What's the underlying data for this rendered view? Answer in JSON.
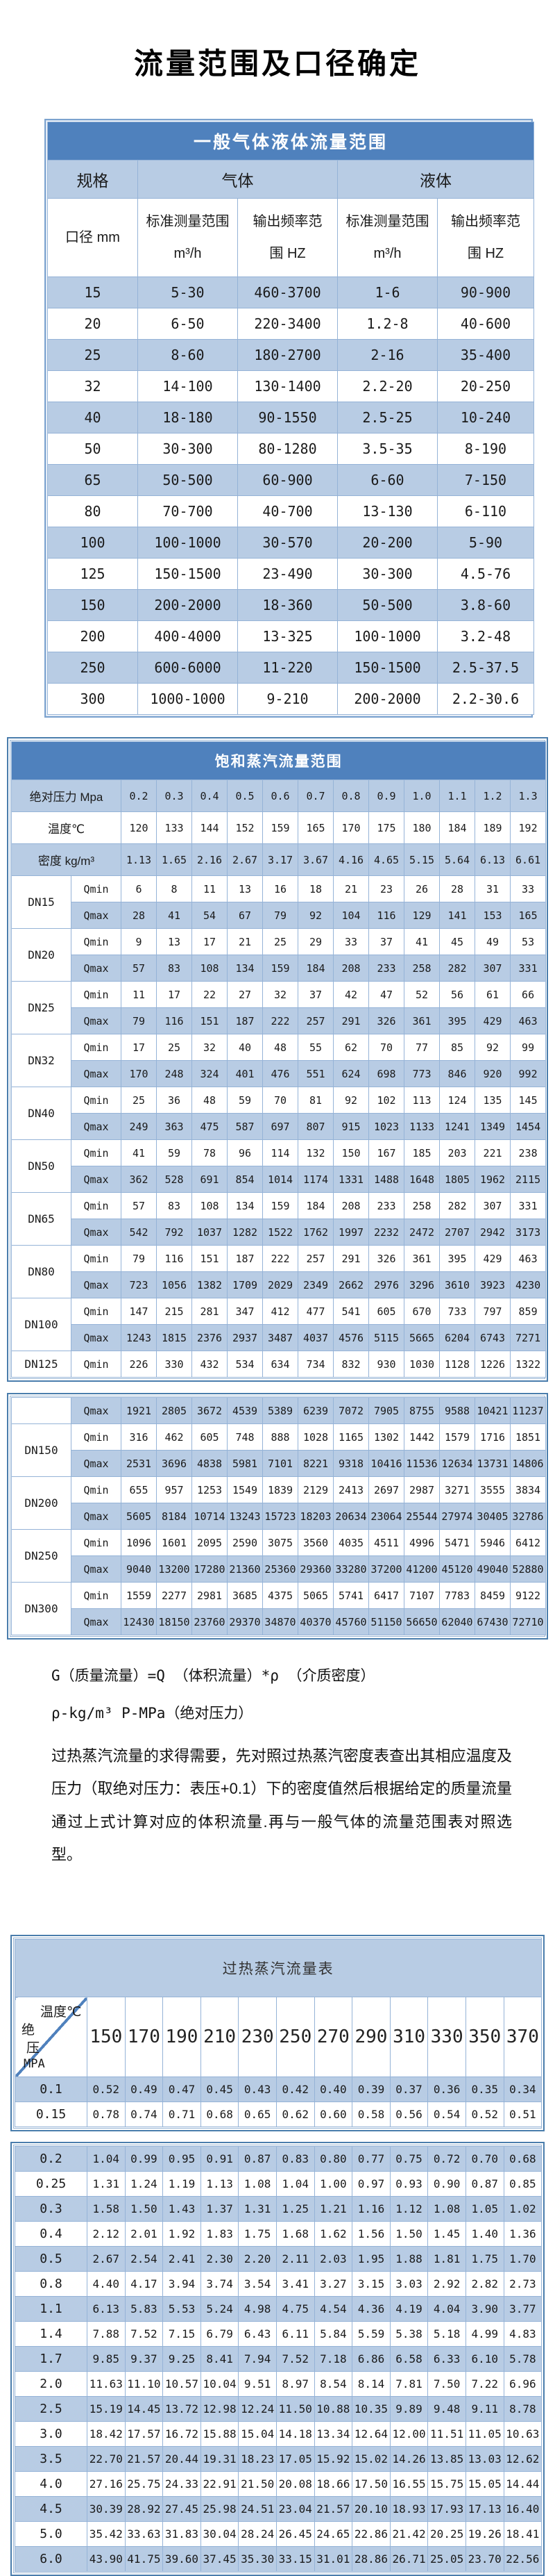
{
  "page_title": "流量范围及口径确定",
  "colors": {
    "header_blue": "#4f81bd",
    "light_blue": "#b8cce4",
    "cell_border": "#95b3d7",
    "outer_border": "#4a7dac"
  },
  "table1": {
    "title": "一般气体液体流量范围",
    "group_headers": [
      {
        "label": "规格",
        "colspan": 1
      },
      {
        "label": "气体",
        "colspan": 2
      },
      {
        "label": "液体",
        "colspan": 2
      }
    ],
    "sub_headers": [
      "口径 mm",
      "标准测量范围\nm³/h",
      "输出频率范\n围 HZ",
      "标准测量范围\nm³/h",
      "输出频率范\n围 HZ"
    ],
    "rows": [
      [
        "15",
        "5-30",
        "460-3700",
        "1-6",
        "90-900"
      ],
      [
        "20",
        "6-50",
        "220-3400",
        "1.2-8",
        "40-600"
      ],
      [
        "25",
        "8-60",
        "180-2700",
        "2-16",
        "35-400"
      ],
      [
        "32",
        "14-100",
        "130-1400",
        "2.2-20",
        "20-250"
      ],
      [
        "40",
        "18-180",
        "90-1550",
        "2.5-25",
        "10-240"
      ],
      [
        "50",
        "30-300",
        "80-1280",
        "3.5-35",
        "8-190"
      ],
      [
        "65",
        "50-500",
        "60-900",
        "6-60",
        "7-150"
      ],
      [
        "80",
        "70-700",
        "40-700",
        "13-130",
        "6-110"
      ],
      [
        "100",
        "100-1000",
        "30-570",
        "20-200",
        "5-90"
      ],
      [
        "125",
        "150-1500",
        "23-490",
        "30-300",
        "4.5-76"
      ],
      [
        "150",
        "200-2000",
        "18-360",
        "50-500",
        "3.8-60"
      ],
      [
        "200",
        "400-4000",
        "13-325",
        "100-1000",
        "3.2-48"
      ],
      [
        "250",
        "600-6000",
        "11-220",
        "150-1500",
        "2.5-37.5"
      ],
      [
        "300",
        "1000-1000",
        "9-210",
        "200-2000",
        "2.2-30.6"
      ]
    ]
  },
  "table2": {
    "title": "饱和蒸汽流量范围",
    "pressure_label": "绝对压力 Mpa",
    "pressures": [
      "0.2",
      "0.3",
      "0.4",
      "0.5",
      "0.6",
      "0.7",
      "0.8",
      "0.9",
      "1.0",
      "1.1",
      "1.2",
      "1.3"
    ],
    "temp_label": "温度℃",
    "temps": [
      "120",
      "133",
      "144",
      "152",
      "159",
      "165",
      "170",
      "175",
      "180",
      "184",
      "189",
      "192"
    ],
    "density_label": "密度 kg/m³",
    "densities": [
      "1.13",
      "1.65",
      "2.16",
      "2.67",
      "3.17",
      "3.67",
      "4.16",
      "4.65",
      "5.15",
      "5.64",
      "6.13",
      "6.61"
    ],
    "qmin_label": "Qmin",
    "qmax_label": "Qmax",
    "groups1": [
      {
        "dn": "DN15",
        "qmin": [
          "6",
          "8",
          "11",
          "13",
          "16",
          "18",
          "21",
          "23",
          "26",
          "28",
          "31",
          "33"
        ],
        "qmax": [
          "28",
          "41",
          "54",
          "67",
          "79",
          "92",
          "104",
          "116",
          "129",
          "141",
          "153",
          "165"
        ]
      },
      {
        "dn": "DN20",
        "qmin": [
          "9",
          "13",
          "17",
          "21",
          "25",
          "29",
          "33",
          "37",
          "41",
          "45",
          "49",
          "53"
        ],
        "qmax": [
          "57",
          "83",
          "108",
          "134",
          "159",
          "184",
          "208",
          "233",
          "258",
          "282",
          "307",
          "331"
        ]
      },
      {
        "dn": "DN25",
        "qmin": [
          "11",
          "17",
          "22",
          "27",
          "32",
          "37",
          "42",
          "47",
          "52",
          "56",
          "61",
          "66"
        ],
        "qmax": [
          "79",
          "116",
          "151",
          "187",
          "222",
          "257",
          "291",
          "326",
          "361",
          "395",
          "429",
          "463"
        ]
      },
      {
        "dn": "DN32",
        "qmin": [
          "17",
          "25",
          "32",
          "40",
          "48",
          "55",
          "62",
          "70",
          "77",
          "85",
          "92",
          "99"
        ],
        "qmax": [
          "170",
          "248",
          "324",
          "401",
          "476",
          "551",
          "624",
          "698",
          "773",
          "846",
          "920",
          "992"
        ]
      },
      {
        "dn": "DN40",
        "qmin": [
          "25",
          "36",
          "48",
          "59",
          "70",
          "81",
          "92",
          "102",
          "113",
          "124",
          "135",
          "145"
        ],
        "qmax": [
          "249",
          "363",
          "475",
          "587",
          "697",
          "807",
          "915",
          "1023",
          "1133",
          "1241",
          "1349",
          "1454"
        ]
      },
      {
        "dn": "DN50",
        "qmin": [
          "41",
          "59",
          "78",
          "96",
          "114",
          "132",
          "150",
          "167",
          "185",
          "203",
          "221",
          "238"
        ],
        "qmax": [
          "362",
          "528",
          "691",
          "854",
          "1014",
          "1174",
          "1331",
          "1488",
          "1648",
          "1805",
          "1962",
          "2115"
        ]
      },
      {
        "dn": "DN65",
        "qmin": [
          "57",
          "83",
          "108",
          "134",
          "159",
          "184",
          "208",
          "233",
          "258",
          "282",
          "307",
          "331"
        ],
        "qmax": [
          "542",
          "792",
          "1037",
          "1282",
          "1522",
          "1762",
          "1997",
          "2232",
          "2472",
          "2707",
          "2942",
          "3173"
        ]
      },
      {
        "dn": "DN80",
        "qmin": [
          "79",
          "116",
          "151",
          "187",
          "222",
          "257",
          "291",
          "326",
          "361",
          "395",
          "429",
          "463"
        ],
        "qmax": [
          "723",
          "1056",
          "1382",
          "1709",
          "2029",
          "2349",
          "2662",
          "2976",
          "3296",
          "3610",
          "3923",
          "4230"
        ]
      },
      {
        "dn": "DN100",
        "qmin": [
          "147",
          "215",
          "281",
          "347",
          "412",
          "477",
          "541",
          "605",
          "670",
          "733",
          "797",
          "859"
        ],
        "qmax": [
          "1243",
          "1815",
          "2376",
          "2937",
          "3487",
          "4037",
          "4576",
          "5115",
          "5665",
          "6204",
          "6743",
          "7271"
        ]
      },
      {
        "dn": "DN125",
        "qmin": [
          "226",
          "330",
          "432",
          "534",
          "634",
          "734",
          "832",
          "930",
          "1030",
          "1128",
          "1226",
          "1322"
        ]
      }
    ],
    "groups2": [
      {
        "dn": "",
        "qmax": [
          "1921",
          "2805",
          "3672",
          "4539",
          "5389",
          "6239",
          "7072",
          "7905",
          "8755",
          "9588",
          "10421",
          "11237"
        ]
      },
      {
        "dn": "DN150",
        "qmin": [
          "316",
          "462",
          "605",
          "748",
          "888",
          "1028",
          "1165",
          "1302",
          "1442",
          "1579",
          "1716",
          "1851"
        ],
        "qmax": [
          "2531",
          "3696",
          "4838",
          "5981",
          "7101",
          "8221",
          "9318",
          "10416",
          "11536",
          "12634",
          "13731",
          "14806"
        ]
      },
      {
        "dn": "DN200",
        "qmin": [
          "655",
          "957",
          "1253",
          "1549",
          "1839",
          "2129",
          "2413",
          "2697",
          "2987",
          "3271",
          "3555",
          "3834"
        ],
        "qmax": [
          "5605",
          "8184",
          "10714",
          "13243",
          "15723",
          "18203",
          "20634",
          "23064",
          "25544",
          "27974",
          "30405",
          "32786"
        ]
      },
      {
        "dn": "DN250",
        "qmin": [
          "1096",
          "1601",
          "2095",
          "2590",
          "3075",
          "3560",
          "4035",
          "4511",
          "4996",
          "5471",
          "5946",
          "6412"
        ],
        "qmax": [
          "9040",
          "13200",
          "17280",
          "21360",
          "25360",
          "29360",
          "33280",
          "37200",
          "41200",
          "45120",
          "49040",
          "52880"
        ]
      },
      {
        "dn": "DN300",
        "qmin": [
          "1559",
          "2277",
          "2981",
          "3685",
          "4375",
          "5065",
          "5741",
          "6417",
          "7107",
          "7783",
          "8459",
          "9122"
        ],
        "qmax": [
          "12430",
          "18150",
          "23760",
          "29370",
          "34870",
          "40370",
          "45760",
          "51150",
          "56650",
          "62040",
          "67430",
          "72710"
        ]
      }
    ]
  },
  "notes": {
    "formula1": "G（质量流量）=Q （体积流量）*ρ （介质密度）",
    "formula2": "ρ-kg/m³ P-MPa（绝对压力）",
    "paragraph": "过热蒸汽流量的求得需要，先对照过热蒸汽密度表查出其相应温度及压力（取绝对压力：表压+0.1）下的密度值然后根据给定的质量流量通过上式计算对应的体积流量.再与一般气体的流量范围表对照选型。"
  },
  "table3": {
    "title": "过热蒸汽流量表",
    "corner": {
      "top": "温度℃",
      "left_lines": [
        "绝",
        "压",
        "MPA"
      ]
    },
    "temps": [
      "150",
      "170",
      "190",
      "210",
      "230",
      "250",
      "270",
      "290",
      "310",
      "330",
      "350",
      "370"
    ],
    "block1": [
      {
        "p": "0.1",
        "values": [
          "0.52",
          "0.49",
          "0.47",
          "0.45",
          "0.43",
          "0.42",
          "0.40",
          "0.39",
          "0.37",
          "0.36",
          "0.35",
          "0.34"
        ]
      },
      {
        "p": "0.15",
        "values": [
          "0.78",
          "0.74",
          "0.71",
          "0.68",
          "0.65",
          "0.62",
          "0.60",
          "0.58",
          "0.56",
          "0.54",
          "0.52",
          "0.51"
        ]
      }
    ],
    "block2": [
      {
        "p": "0.2",
        "values": [
          "1.04",
          "0.99",
          "0.95",
          "0.91",
          "0.87",
          "0.83",
          "0.80",
          "0.77",
          "0.75",
          "0.72",
          "0.70",
          "0.68"
        ]
      },
      {
        "p": "0.25",
        "values": [
          "1.31",
          "1.24",
          "1.19",
          "1.13",
          "1.08",
          "1.04",
          "1.00",
          "0.97",
          "0.93",
          "0.90",
          "0.87",
          "0.85"
        ]
      },
      {
        "p": "0.3",
        "values": [
          "1.58",
          "1.50",
          "1.43",
          "1.37",
          "1.31",
          "1.25",
          "1.21",
          "1.16",
          "1.12",
          "1.08",
          "1.05",
          "1.02"
        ]
      },
      {
        "p": "0.4",
        "values": [
          "2.12",
          "2.01",
          "1.92",
          "1.83",
          "1.75",
          "1.68",
          "1.62",
          "1.56",
          "1.50",
          "1.45",
          "1.40",
          "1.36"
        ]
      },
      {
        "p": "0.5",
        "values": [
          "2.67",
          "2.54",
          "2.41",
          "2.30",
          "2.20",
          "2.11",
          "2.03",
          "1.95",
          "1.88",
          "1.81",
          "1.75",
          "1.70"
        ]
      },
      {
        "p": "0.8",
        "values": [
          "4.40",
          "4.17",
          "3.94",
          "3.74",
          "3.54",
          "3.41",
          "3.27",
          "3.15",
          "3.03",
          "2.92",
          "2.82",
          "2.73"
        ]
      },
      {
        "p": "1.1",
        "values": [
          "6.13",
          "5.83",
          "5.53",
          "5.24",
          "4.98",
          "4.75",
          "4.54",
          "4.36",
          "4.19",
          "4.04",
          "3.90",
          "3.77"
        ]
      },
      {
        "p": "1.4",
        "values": [
          "7.88",
          "7.52",
          "7.15",
          "6.79",
          "6.43",
          "6.11",
          "5.84",
          "5.59",
          "5.38",
          "5.18",
          "4.99",
          "4.83"
        ]
      },
      {
        "p": "1.7",
        "values": [
          "9.85",
          "9.37",
          "9.25",
          "8.41",
          "7.94",
          "7.52",
          "7.18",
          "6.86",
          "6.58",
          "6.33",
          "6.10",
          "5.78"
        ]
      },
      {
        "p": "2.0",
        "values": [
          "11.63",
          "11.10",
          "10.57",
          "10.04",
          "9.51",
          "8.97",
          "8.54",
          "8.14",
          "7.81",
          "7.50",
          "7.22",
          "6.96"
        ]
      },
      {
        "p": "2.5",
        "values": [
          "15.19",
          "14.45",
          "13.72",
          "12.98",
          "12.24",
          "11.50",
          "10.88",
          "10.35",
          "9.89",
          "9.48",
          "9.11",
          "8.78"
        ]
      },
      {
        "p": "3.0",
        "values": [
          "18.42",
          "17.57",
          "16.72",
          "15.88",
          "15.04",
          "14.18",
          "13.34",
          "12.64",
          "12.00",
          "11.51",
          "11.05",
          "10.63"
        ]
      },
      {
        "p": "3.5",
        "values": [
          "22.70",
          "21.57",
          "20.44",
          "19.31",
          "18.23",
          "17.05",
          "15.92",
          "15.02",
          "14.26",
          "13.85",
          "13.03",
          "12.62"
        ]
      },
      {
        "p": "4.0",
        "values": [
          "27.16",
          "25.75",
          "24.33",
          "22.91",
          "21.50",
          "20.08",
          "18.66",
          "17.50",
          "16.55",
          "15.75",
          "15.05",
          "14.44"
        ]
      },
      {
        "p": "4.5",
        "values": [
          "30.39",
          "28.92",
          "27.45",
          "25.98",
          "24.51",
          "23.04",
          "21.57",
          "20.10",
          "18.93",
          "17.93",
          "17.13",
          "16.40"
        ]
      },
      {
        "p": "5.0",
        "values": [
          "35.42",
          "33.63",
          "31.83",
          "30.04",
          "28.24",
          "26.45",
          "24.65",
          "22.86",
          "21.42",
          "20.25",
          "19.26",
          "18.41"
        ]
      },
      {
        "p": "6.0",
        "values": [
          "43.90",
          "41.75",
          "39.60",
          "37.45",
          "35.30",
          "33.15",
          "31.01",
          "28.86",
          "26.71",
          "25.05",
          "23.70",
          "22.56"
        ]
      }
    ]
  }
}
